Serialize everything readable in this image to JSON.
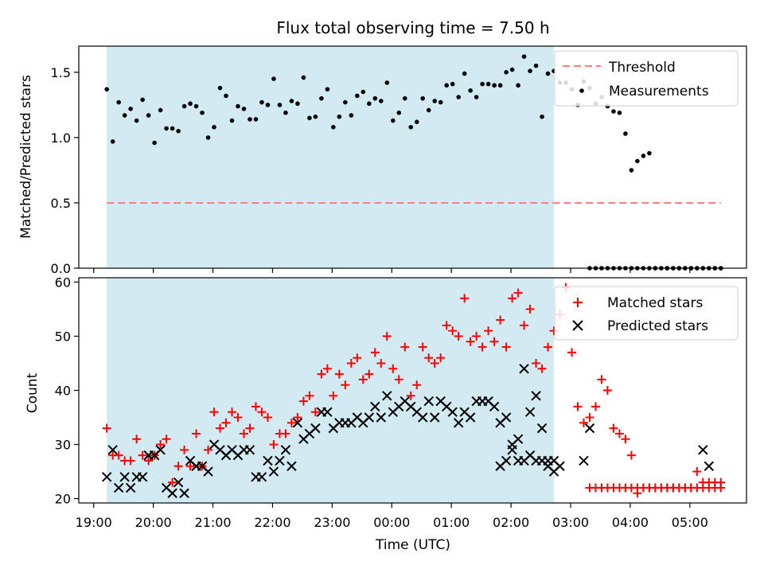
{
  "chart_data": [
    {
      "type": "scatter",
      "title": "Flux total observing time = 7.50 h",
      "xlabel": "",
      "ylabel": "Matched/Predicted stars",
      "xlim_hours": [
        18.75,
        29.95
      ],
      "ylim": [
        0,
        1.7
      ],
      "yticks": [
        "0.0",
        "0.5",
        "1.0",
        "1.5"
      ],
      "shaded_interval_hours": [
        19.22,
        26.72
      ],
      "shade_color": "#add8e6",
      "threshold": {
        "name": "Threshold",
        "value": 0.5,
        "x_range_hours": [
          19.22,
          29.52
        ],
        "color": "#ff7f7f"
      },
      "series": [
        {
          "name": "Measurements",
          "color": "#000000",
          "x": [
            19.22,
            19.32,
            19.42,
            19.52,
            19.62,
            19.72,
            19.82,
            19.92,
            20.02,
            20.12,
            20.22,
            20.32,
            20.42,
            20.52,
            20.62,
            20.72,
            20.82,
            20.92,
            21.02,
            21.12,
            21.22,
            21.32,
            21.42,
            21.52,
            21.62,
            21.72,
            21.82,
            21.92,
            22.02,
            22.12,
            22.22,
            22.32,
            22.42,
            22.52,
            22.62,
            22.72,
            22.82,
            22.92,
            23.02,
            23.12,
            23.22,
            23.32,
            23.42,
            23.52,
            23.62,
            23.72,
            23.82,
            23.92,
            24.02,
            24.12,
            24.22,
            24.32,
            24.42,
            24.52,
            24.62,
            24.72,
            24.82,
            24.92,
            25.02,
            25.12,
            25.22,
            25.32,
            25.42,
            25.52,
            25.62,
            25.72,
            25.82,
            25.92,
            26.02,
            26.12,
            26.22,
            26.32,
            26.42,
            26.52,
            26.62,
            26.72,
            26.82,
            26.92,
            27.02,
            27.12,
            27.22,
            27.32,
            27.42,
            27.52,
            27.62,
            27.72,
            27.82,
            27.92,
            28.02,
            28.12,
            28.22,
            28.32,
            28.42,
            28.52,
            28.62,
            28.72,
            28.82,
            28.92,
            29.02,
            29.12,
            29.22,
            29.32,
            29.42,
            29.52
          ],
          "y": [
            1.37,
            0.97,
            1.27,
            1.17,
            1.22,
            1.13,
            1.29,
            1.17,
            0.96,
            1.21,
            1.07,
            1.07,
            1.05,
            1.24,
            1.26,
            1.24,
            1.19,
            1.0,
            1.08,
            1.38,
            1.32,
            1.13,
            1.24,
            1.22,
            1.14,
            1.14,
            1.27,
            1.25,
            1.45,
            1.25,
            1.19,
            1.28,
            1.26,
            1.46,
            1.15,
            1.16,
            1.3,
            1.37,
            1.08,
            1.16,
            1.27,
            1.17,
            1.32,
            1.35,
            1.26,
            1.3,
            1.28,
            1.42,
            1.13,
            1.19,
            1.3,
            1.08,
            1.12,
            1.3,
            1.21,
            1.28,
            1.27,
            1.4,
            1.41,
            1.31,
            1.49,
            1.36,
            1.31,
            1.41,
            1.41,
            1.4,
            1.4,
            1.5,
            1.52,
            1.4,
            1.62,
            1.51,
            1.55,
            1.16,
            1.49,
            1.51,
            1.42,
            1.42,
            1.37,
            1.25,
            1.43,
            1.38,
            1.26,
            1.31,
            1.24,
            1.2,
            1.19,
            1.03,
            0.75,
            0.82,
            0.86,
            0.88,
            0,
            0,
            0,
            0,
            0,
            0,
            0,
            0,
            0,
            0,
            0,
            0
          ],
          "x_extra": [
            27.32,
            27.42,
            27.52,
            27.62,
            27.72,
            27.82,
            27.92,
            28.02,
            28.12,
            28.22,
            28.32,
            28.42,
            28.52,
            28.62,
            28.72,
            28.82,
            28.92,
            29.02,
            29.12,
            29.22,
            29.42,
            29.52
          ],
          "y_extra": [
            0,
            0,
            0,
            0,
            0,
            0,
            0,
            0,
            0,
            0,
            0,
            0,
            0,
            0,
            0,
            0,
            0,
            0,
            0,
            0,
            0,
            0
          ]
        }
      ],
      "legend_position": "top-right"
    },
    {
      "type": "scatter",
      "title": "",
      "xlabel": "Time (UTC)",
      "ylabel": "Count",
      "xlim_hours": [
        18.75,
        29.95
      ],
      "ylim": [
        19.2,
        60.8
      ],
      "yticks": [
        "20",
        "30",
        "40",
        "50",
        "60"
      ],
      "xticks": [
        "19:00",
        "20:00",
        "21:00",
        "22:00",
        "23:00",
        "00:00",
        "01:00",
        "02:00",
        "03:00",
        "04:00",
        "05:00"
      ],
      "shaded_interval_hours": [
        19.22,
        26.72
      ],
      "shade_color": "#add8e6",
      "series": [
        {
          "name": "Matched stars",
          "marker": "plus",
          "color": "#ff0000",
          "x": [
            19.22,
            19.32,
            19.42,
            19.52,
            19.62,
            19.72,
            19.82,
            19.92,
            20.02,
            20.12,
            20.22,
            20.32,
            20.42,
            20.52,
            20.62,
            20.72,
            20.82,
            20.92,
            21.02,
            21.12,
            21.22,
            21.32,
            21.42,
            21.52,
            21.62,
            21.72,
            21.82,
            21.92,
            22.02,
            22.12,
            22.22,
            22.32,
            22.42,
            22.52,
            22.62,
            22.72,
            22.82,
            22.92,
            23.02,
            23.12,
            23.22,
            23.32,
            23.42,
            23.52,
            23.62,
            23.72,
            23.82,
            23.92,
            24.02,
            24.12,
            24.22,
            24.32,
            24.42,
            24.52,
            24.62,
            24.72,
            24.82,
            24.92,
            25.02,
            25.12,
            25.22,
            25.32,
            25.42,
            25.52,
            25.62,
            25.72,
            25.82,
            25.92,
            26.02,
            26.12,
            26.22,
            26.32,
            26.42,
            26.52,
            26.62,
            26.72,
            26.82,
            26.92,
            27.02,
            27.12,
            27.22,
            27.32,
            27.42,
            27.52,
            27.62,
            27.72,
            27.82,
            27.92,
            28.02,
            28.12,
            28.22,
            28.32,
            28.42,
            28.52,
            28.62,
            28.72,
            28.82,
            28.92,
            29.02,
            29.12,
            29.22,
            29.32,
            29.42,
            29.52
          ],
          "y": [
            33,
            28,
            28,
            27,
            27,
            31,
            28,
            27,
            28,
            30,
            31,
            23,
            26,
            29,
            26,
            32,
            26,
            29,
            36,
            33,
            34,
            36,
            35,
            32,
            33,
            37,
            36,
            35,
            30,
            32,
            32,
            34,
            35,
            38,
            39,
            36,
            43,
            44,
            39,
            43,
            41,
            45,
            46,
            42,
            43,
            47,
            45,
            50,
            44,
            42,
            48,
            39,
            41,
            48,
            46,
            45,
            46,
            52,
            51,
            50,
            57,
            49,
            50,
            48,
            51,
            49,
            53,
            48,
            57,
            58,
            52,
            55,
            45,
            44,
            48,
            51,
            54,
            59,
            47,
            37,
            34,
            35,
            37,
            42,
            40,
            33,
            32,
            31,
            28,
            21,
            22,
            22,
            22,
            22,
            22,
            22,
            22,
            22,
            22,
            22,
            22,
            22,
            22,
            22
          ],
          "x_extra": [
            27.32,
            27.42,
            27.52,
            27.62,
            27.72,
            27.82,
            27.92,
            28.02,
            28.12,
            28.22,
            28.32,
            28.42,
            28.52,
            28.62,
            28.72,
            28.82,
            28.92,
            29.02,
            29.12,
            29.22,
            29.32,
            29.42,
            29.52
          ],
          "y_extra": [
            22,
            22,
            22,
            22,
            22,
            22,
            22,
            22,
            22,
            22,
            22,
            22,
            22,
            22,
            22,
            22,
            22,
            22,
            25,
            23,
            23,
            23,
            23
          ]
        },
        {
          "name": "Predicted stars",
          "marker": "x",
          "color": "#000000",
          "x": [
            19.22,
            19.32,
            19.42,
            19.52,
            19.62,
            19.72,
            19.82,
            19.92,
            20.02,
            20.12,
            20.22,
            20.32,
            20.42,
            20.52,
            20.62,
            20.72,
            20.82,
            20.92,
            21.02,
            21.12,
            21.22,
            21.32,
            21.42,
            21.52,
            21.62,
            21.72,
            21.82,
            21.92,
            22.02,
            22.12,
            22.22,
            22.32,
            22.42,
            22.52,
            22.62,
            22.72,
            22.82,
            22.92,
            23.02,
            23.12,
            23.22,
            23.32,
            23.42,
            23.52,
            23.62,
            23.72,
            23.82,
            23.92,
            24.02,
            24.12,
            24.22,
            24.32,
            24.42,
            24.52,
            24.62,
            24.72,
            24.82,
            24.92,
            25.02,
            25.12,
            25.22,
            25.32,
            25.42,
            25.52,
            25.62,
            25.72,
            25.82,
            25.92,
            26.02,
            26.12,
            26.22,
            26.32,
            26.42,
            26.52,
            26.62,
            26.72,
            26.82,
            27.22,
            27.32
          ],
          "y": [
            24,
            29,
            22,
            24,
            22,
            24,
            24,
            28,
            28,
            29,
            22,
            21,
            23,
            21,
            27,
            26,
            26,
            25,
            30,
            29,
            28,
            29,
            28,
            29,
            29,
            24,
            24,
            27,
            25,
            27,
            29,
            26,
            34,
            31,
            32,
            33,
            36,
            36,
            33,
            34,
            34,
            34,
            35,
            34,
            35,
            37,
            35,
            39,
            36,
            37,
            38,
            37,
            36,
            35,
            38,
            35,
            38,
            37,
            36,
            34,
            36,
            35,
            38,
            38,
            38,
            37,
            34,
            35,
            29,
            31,
            44,
            36,
            39,
            33,
            26,
            25,
            26,
            27,
            33
          ],
          "x_extra": [
            25.82,
            25.92,
            26.02,
            26.12,
            26.22,
            26.32,
            26.42,
            26.52,
            26.62,
            26.72,
            29.22,
            29.32
          ],
          "y_extra": [
            26,
            27,
            30,
            27,
            27,
            28,
            27,
            27,
            27,
            27,
            29,
            26
          ]
        }
      ],
      "legend_position": "top-right"
    }
  ]
}
